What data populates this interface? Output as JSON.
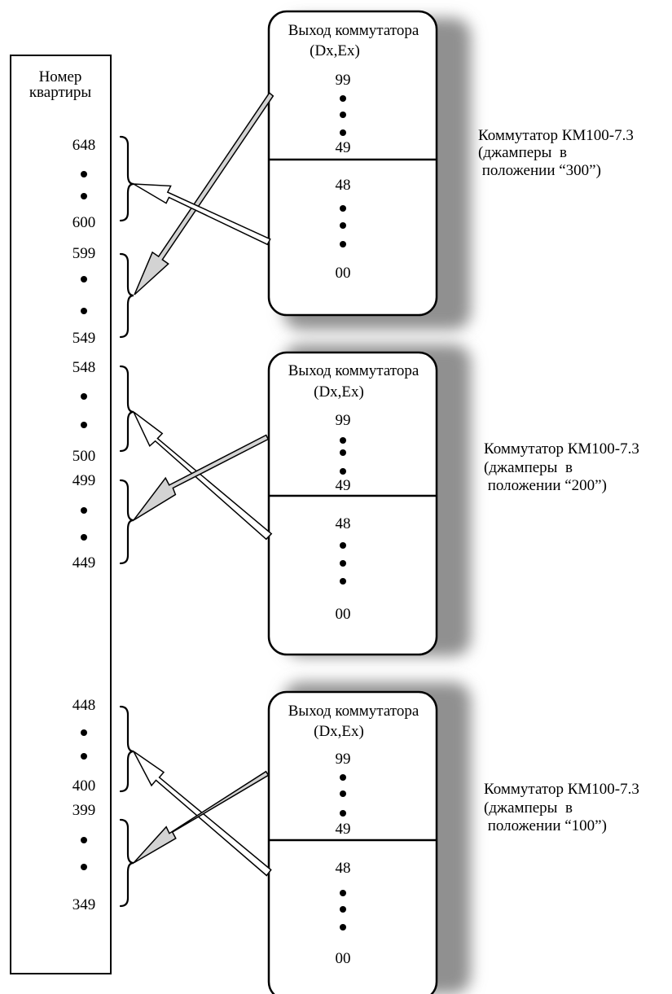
{
  "column": {
    "title_lines": [
      "Номер",
      "квартиры"
    ],
    "groups": [
      {
        "top": "648",
        "bottom": "600"
      },
      {
        "top": "599",
        "bottom": "549"
      },
      {
        "top": "548",
        "bottom": "500"
      },
      {
        "top": "499",
        "bottom": "449"
      },
      {
        "top": "448",
        "bottom": "400"
      },
      {
        "top": "399",
        "bottom": "349"
      }
    ]
  },
  "switches": [
    {
      "header_lines": [
        "Выход коммутатора",
        "(Dx,Ex)"
      ],
      "upper_top": "99",
      "upper_bottom": "49",
      "lower_top": "48",
      "lower_bottom": "00",
      "side_lines": [
        "Коммутатор КМ100-7.3",
        "(джамперы  в",
        " положении “300”)"
      ]
    },
    {
      "header_lines": [
        "Выход коммутатора",
        "(Dx,Ex)"
      ],
      "upper_top": "99",
      "upper_bottom": "49",
      "lower_top": "48",
      "lower_bottom": "00",
      "side_lines": [
        "Коммутатор КМ100-7.3",
        "(джамперы  в",
        " положении “200”)"
      ]
    },
    {
      "header_lines": [
        "Выход коммутатора",
        "(Dx,Ex)"
      ],
      "upper_top": "99",
      "upper_bottom": "49",
      "lower_top": "48",
      "lower_bottom": "00",
      "side_lines": [
        "Коммутатор КМ100-7.3",
        "(джамперы  в",
        " положении “100”)"
      ]
    }
  ]
}
